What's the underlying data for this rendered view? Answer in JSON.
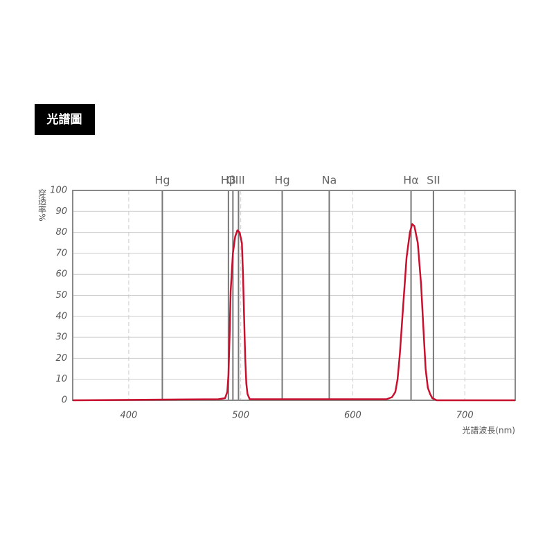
{
  "chart_data": {
    "type": "line",
    "title": "光譜圖",
    "y_label": "穿透率%",
    "x_label": "光譜波長(nm)",
    "xlim": [
      350,
      745
    ],
    "xticks": [
      400,
      500,
      600,
      700
    ],
    "ylim": [
      0,
      100
    ],
    "yticks": [
      0,
      10,
      20,
      30,
      40,
      50,
      60,
      70,
      80,
      90,
      100
    ],
    "grid": true,
    "reference_lines": [
      {
        "label": "Hg",
        "x": [
          430
        ]
      },
      {
        "label": "Hβ",
        "x": [
          489
        ]
      },
      {
        "label": "OIII",
        "x": [
          493,
          498
        ]
      },
      {
        "label": "Hg",
        "x": [
          537
        ]
      },
      {
        "label": "Na",
        "x": [
          579
        ]
      },
      {
        "label": "Hα",
        "x": [
          652
        ]
      },
      {
        "label": "SII",
        "x": [
          672
        ]
      }
    ],
    "series": [
      {
        "color": "#c8102e",
        "x": [
          350,
          480,
          486,
          488,
          489,
          490,
          491,
          493,
          495,
          497,
          499,
          501,
          502,
          503,
          504,
          505,
          506,
          508,
          520,
          600,
          630,
          635,
          638,
          640,
          642,
          645,
          648,
          651,
          653,
          655,
          658,
          661,
          663,
          665,
          667,
          669,
          671,
          675,
          700,
          745
        ],
        "values": [
          0,
          0.5,
          1,
          4,
          12,
          30,
          52,
          70,
          78,
          81,
          80,
          75,
          60,
          40,
          20,
          8,
          3,
          0.5,
          0.5,
          0.5,
          0.5,
          1.5,
          4,
          10,
          22,
          45,
          68,
          80,
          84,
          83,
          75,
          55,
          35,
          15,
          6,
          3,
          1,
          0,
          0,
          0
        ]
      }
    ]
  }
}
